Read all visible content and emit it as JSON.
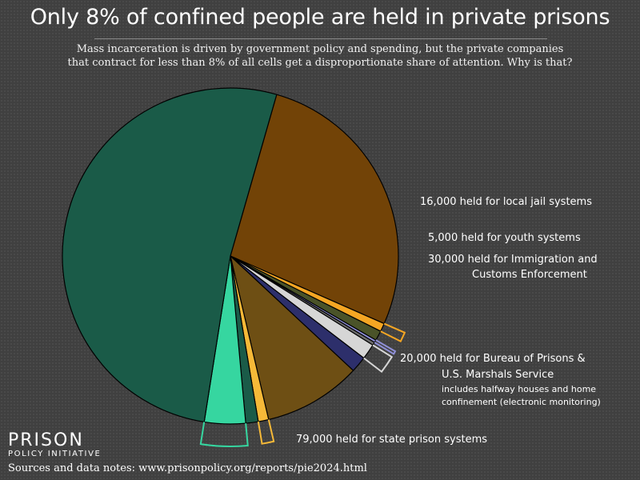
{
  "title": "Only 8% of confined people are held in private prisons",
  "subtitle_lines": [
    "Mass incarceration is driven by government policy and spending, but the private companies",
    "that contract for less than 8% of all cells get a disproportionate share of attention. Why is that?"
  ],
  "logo": {
    "line1": "PRISON",
    "line2": "POLICY INITIATIVE"
  },
  "sources": "Sources and data notes: www.prisonpolicy.org/reports/pie2024.html",
  "colors": {
    "background": "#404040",
    "state_prison": "#1a5b48",
    "state_private": "#36d6a0",
    "jail": "#724307",
    "jail_private": "#f5a623",
    "youth": "#4a5329",
    "youth_private": "#8e8fd6",
    "ice": "#6e6e6e",
    "ice_private": "#d6d6d6",
    "other": "#2d2f6b",
    "federal": "#6e4f14",
    "federal_private": "#f6b938"
  },
  "chart_data": {
    "type": "pie",
    "title": "Only 8% of confined people are held in private prisons",
    "slices": [
      {
        "key": "jail",
        "value": 543000,
        "color": "#724307"
      },
      {
        "key": "jail_private",
        "value": 16000,
        "color": "#f5a623",
        "private": true
      },
      {
        "key": "youth",
        "value": 19000,
        "color": "#4a5329"
      },
      {
        "key": "youth_private",
        "value": 5000,
        "color": "#8e8fd6",
        "private": true
      },
      {
        "key": "ice",
        "value": 6000,
        "color": "#6e6e6e"
      },
      {
        "key": "ice_private",
        "value": 30000,
        "color": "#d6d6d6",
        "private": true
      },
      {
        "key": "other",
        "value": 31000,
        "color": "#2d2f6b"
      },
      {
        "key": "federal",
        "value": 188000,
        "color": "#6e4f14"
      },
      {
        "key": "federal_private",
        "value": 20000,
        "color": "#f6b938",
        "private": true
      },
      {
        "key": "state_private_gap",
        "value": 24000,
        "color": "#1a5b48"
      },
      {
        "key": "state_private",
        "value": 79000,
        "color": "#36d6a0",
        "private": true
      },
      {
        "key": "state_prison",
        "value": 1039000,
        "color": "#1a5b48"
      }
    ],
    "labels": {
      "jail_private": [
        "16,000 held for local jail systems"
      ],
      "youth_private": [
        "5,000 held for youth systems"
      ],
      "ice_private": [
        "30,000 held for Immigration and",
        "Customs Enforcement"
      ],
      "federal_private": [
        "20,000 held for Bureau of Prisons &",
        "U.S. Marshals Service"
      ],
      "federal_private_note": [
        "includes halfway houses and home",
        "confinement (electronic monitoring)"
      ],
      "state_private": [
        "79,000 held for state prison systems"
      ]
    }
  }
}
